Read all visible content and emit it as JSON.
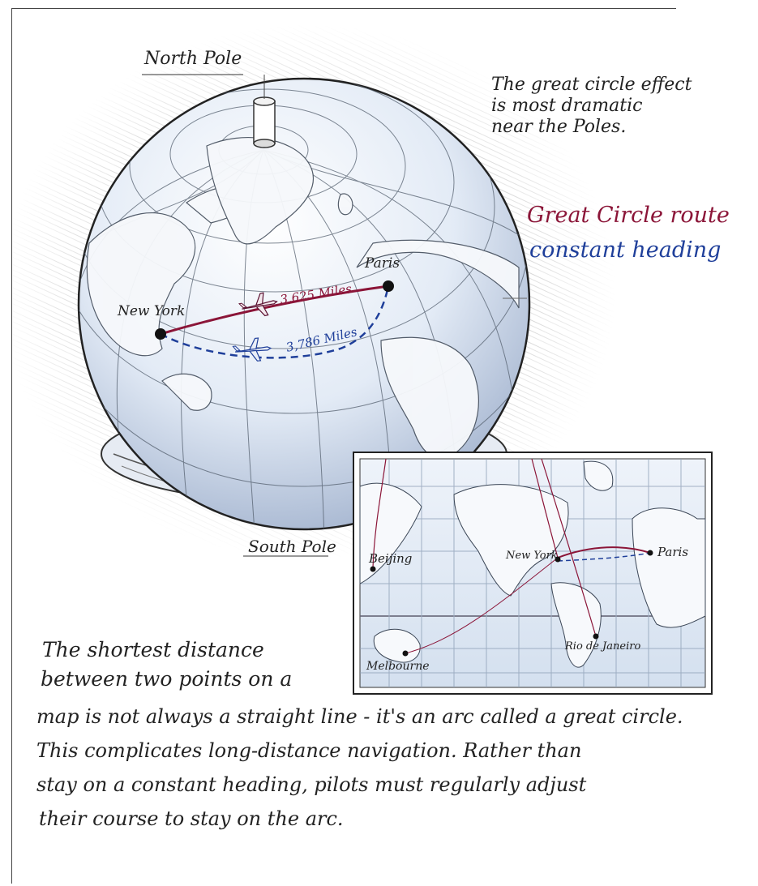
{
  "globe": {
    "north_pole": "North Pole",
    "south_pole": "South Pole",
    "cities": {
      "new_york": "New York",
      "paris": "Paris"
    },
    "routes": {
      "great_circle_distance": "3,625 Miles",
      "constant_heading_distance": "3,786 Miles"
    }
  },
  "note": {
    "line1": "The great circle effect",
    "line2": "is most dramatic",
    "line3": "near the Poles."
  },
  "legend": {
    "great_circle": "Great Circle route",
    "constant_heading": "constant heading",
    "great_circle_color": "#8b1538",
    "constant_heading_color": "#1f3f9a"
  },
  "inset_map": {
    "cities": {
      "beijing": "Beijing",
      "new_york": "New York",
      "paris": "Paris",
      "rio": "Rio de Janeiro",
      "melbourne": "Melbourne"
    }
  },
  "caption": {
    "line1": "The shortest distance",
    "line2": "between two points on a",
    "line3": "map is not always a straight line - it's an arc called a great circle.",
    "line4": "This complicates long-distance navigation. Rather than",
    "line5": "stay on a constant heading, pilots must regularly adjust",
    "line6": "their course to stay on the arc."
  }
}
